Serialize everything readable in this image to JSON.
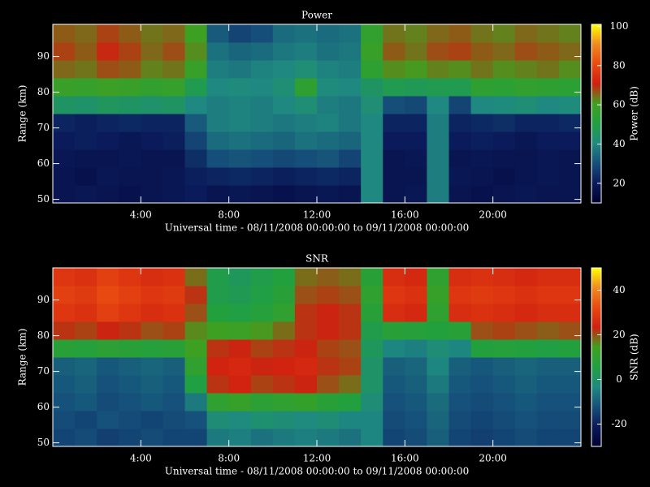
{
  "chart_data": [
    {
      "type": "heatmap",
      "title": "Power",
      "xlabel": "Universal time - 08/11/2008 00:00:00 to 09/11/2008 00:00:00",
      "ylabel": "Range (km)",
      "colorbar_label": "Power (dB)",
      "xlim": [
        0,
        24
      ],
      "xticks": [
        {
          "value": 4,
          "label": "4:00"
        },
        {
          "value": 8,
          "label": "8:00"
        },
        {
          "value": 12,
          "label": "12:00"
        },
        {
          "value": 16,
          "label": "16:00"
        },
        {
          "value": 20,
          "label": "20:00"
        }
      ],
      "ylim": [
        49,
        99
      ],
      "yticks": [
        50,
        60,
        70,
        80,
        90
      ],
      "clim": [
        10,
        101
      ],
      "cticks": [
        20,
        40,
        60,
        80,
        100
      ],
      "colormap": [
        "#000030",
        "#0a1a5a",
        "#15507a",
        "#1f8a80",
        "#20a040",
        "#40a020",
        "#d02010",
        "#e84a10",
        "#f08a20",
        "#ffff00"
      ],
      "x": [
        0.5,
        1.5,
        2.5,
        3.5,
        4.5,
        5.5,
        6.5,
        7.5,
        8.5,
        9.5,
        10.5,
        11.5,
        12.5,
        13.5,
        14.5,
        15.5,
        16.5,
        17.5,
        18.5,
        19.5,
        20.5,
        21.5,
        22.5,
        23.5
      ],
      "y": [
        51.5,
        56.5,
        61.5,
        66.5,
        71.5,
        76.5,
        81.5,
        86.5,
        91.5,
        96.5
      ],
      "z": [
        [
          18,
          19,
          18,
          17,
          18,
          19,
          20,
          18,
          19,
          18,
          17,
          18,
          19,
          18,
          40,
          18,
          19,
          38,
          18,
          17,
          18,
          19,
          18,
          18
        ],
        [
          18,
          17,
          19,
          18,
          18,
          19,
          21,
          22,
          23,
          22,
          21,
          22,
          23,
          22,
          40,
          18,
          18,
          38,
          19,
          18,
          17,
          18,
          19,
          18
        ],
        [
          19,
          18,
          18,
          19,
          18,
          18,
          24,
          30,
          31,
          30,
          29,
          30,
          31,
          28,
          40,
          18,
          19,
          38,
          18,
          19,
          18,
          18,
          19,
          18
        ],
        [
          20,
          21,
          20,
          19,
          20,
          21,
          28,
          35,
          36,
          35,
          34,
          36,
          35,
          34,
          40,
          20,
          20,
          38,
          20,
          21,
          20,
          19,
          20,
          20
        ],
        [
          22,
          21,
          22,
          23,
          22,
          22,
          32,
          38,
          39,
          38,
          37,
          38,
          39,
          37,
          40,
          22,
          22,
          38,
          22,
          23,
          24,
          22,
          22,
          23
        ],
        [
          45,
          44,
          46,
          45,
          44,
          45,
          40,
          38,
          39,
          38,
          40,
          42,
          38,
          37,
          42,
          30,
          29,
          40,
          28,
          40,
          41,
          42,
          40,
          41
        ],
        [
          58,
          57,
          59,
          58,
          56,
          57,
          48,
          40,
          41,
          40,
          42,
          55,
          41,
          40,
          45,
          48,
          47,
          48,
          48,
          55,
          54,
          56,
          55,
          54
        ],
        [
          65,
          64,
          67,
          66,
          63,
          64,
          58,
          38,
          37,
          39,
          40,
          42,
          39,
          38,
          55,
          62,
          61,
          63,
          62,
          64,
          62,
          63,
          64,
          62
        ],
        [
          68,
          66,
          70,
          68,
          65,
          67,
          62,
          36,
          34,
          35,
          37,
          38,
          36,
          37,
          58,
          66,
          64,
          67,
          68,
          66,
          65,
          67,
          66,
          65
        ],
        [
          66,
          65,
          68,
          66,
          64,
          65,
          60,
          32,
          28,
          30,
          35,
          36,
          35,
          36,
          56,
          64,
          63,
          65,
          66,
          64,
          63,
          65,
          64,
          63
        ]
      ]
    },
    {
      "type": "heatmap",
      "title": "SNR",
      "xlabel": "Universal time - 08/11/2008 00:00:00 to 09/11/2008 00:00:00",
      "ylabel": "Range (km)",
      "colorbar_label": "SNR (dB)",
      "xlim": [
        0,
        24
      ],
      "xticks": [
        {
          "value": 4,
          "label": "4:00"
        },
        {
          "value": 8,
          "label": "8:00"
        },
        {
          "value": 12,
          "label": "12:00"
        },
        {
          "value": 16,
          "label": "16:00"
        },
        {
          "value": 20,
          "label": "20:00"
        }
      ],
      "ylim": [
        49,
        99
      ],
      "yticks": [
        50,
        60,
        70,
        80,
        90
      ],
      "clim": [
        -30,
        50
      ],
      "cticks": [
        -20,
        0,
        20,
        40
      ],
      "colormap": [
        "#000030",
        "#0a1a5a",
        "#15507a",
        "#1f8a80",
        "#20a040",
        "#40a020",
        "#d02010",
        "#e84a10",
        "#f08a20",
        "#ffff00"
      ],
      "x": [
        0.5,
        1.5,
        2.5,
        3.5,
        4.5,
        5.5,
        6.5,
        7.5,
        8.5,
        9.5,
        10.5,
        11.5,
        12.5,
        13.5,
        14.5,
        15.5,
        16.5,
        17.5,
        18.5,
        19.5,
        20.5,
        21.5,
        22.5,
        23.5
      ],
      "y": [
        51.5,
        56.5,
        61.5,
        66.5,
        71.5,
        76.5,
        81.5,
        86.5,
        91.5,
        96.5
      ],
      "z": [
        [
          -14,
          -13,
          -15,
          -14,
          -13,
          -14,
          -14,
          -6,
          -5,
          -7,
          -6,
          -5,
          -6,
          -7,
          -4,
          -14,
          -13,
          -10,
          -14,
          -15,
          -14,
          -13,
          -14,
          -14
        ],
        [
          -13,
          -14,
          -12,
          -13,
          -14,
          -13,
          -12,
          -2,
          -3,
          -1,
          -2,
          -3,
          -2,
          -4,
          -4,
          -13,
          -12,
          -9,
          -13,
          -14,
          -13,
          -12,
          -13,
          -13
        ],
        [
          -12,
          -11,
          -13,
          -12,
          -11,
          -12,
          -6,
          10,
          12,
          9,
          10,
          11,
          8,
          6,
          -2,
          -12,
          -11,
          -8,
          -12,
          -13,
          -12,
          -11,
          -12,
          -12
        ],
        [
          -11,
          -10,
          -12,
          -11,
          -10,
          -11,
          5,
          22,
          24,
          21,
          22,
          23,
          20,
          18,
          0,
          -11,
          -10,
          -6,
          -11,
          -12,
          -11,
          -10,
          -11,
          -11
        ],
        [
          -10,
          -9,
          -11,
          -10,
          -9,
          -10,
          10,
          24,
          25,
          23,
          24,
          25,
          22,
          21,
          0,
          -10,
          -9,
          -4,
          -10,
          -11,
          -10,
          -9,
          -10,
          -10
        ],
        [
          8,
          7,
          9,
          8,
          7,
          8,
          14,
          22,
          23,
          21,
          22,
          23,
          21,
          20,
          2,
          -4,
          -5,
          -2,
          -4,
          6,
          7,
          6,
          5,
          6
        ],
        [
          22,
          21,
          23,
          22,
          20,
          21,
          16,
          14,
          13,
          15,
          18,
          22,
          23,
          22,
          4,
          8,
          7,
          6,
          8,
          20,
          21,
          20,
          19,
          20
        ],
        [
          28,
          27,
          30,
          28,
          26,
          27,
          20,
          6,
          5,
          7,
          10,
          22,
          23,
          22,
          8,
          26,
          25,
          10,
          26,
          27,
          26,
          25,
          26,
          26
        ],
        [
          30,
          29,
          32,
          30,
          28,
          29,
          22,
          4,
          3,
          5,
          8,
          20,
          21,
          20,
          10,
          28,
          27,
          12,
          28,
          29,
          28,
          27,
          28,
          28
        ],
        [
          28,
          27,
          30,
          28,
          26,
          27,
          18,
          4,
          2,
          4,
          6,
          18,
          19,
          18,
          8,
          26,
          25,
          10,
          26,
          27,
          26,
          25,
          26,
          26
        ]
      ]
    }
  ]
}
